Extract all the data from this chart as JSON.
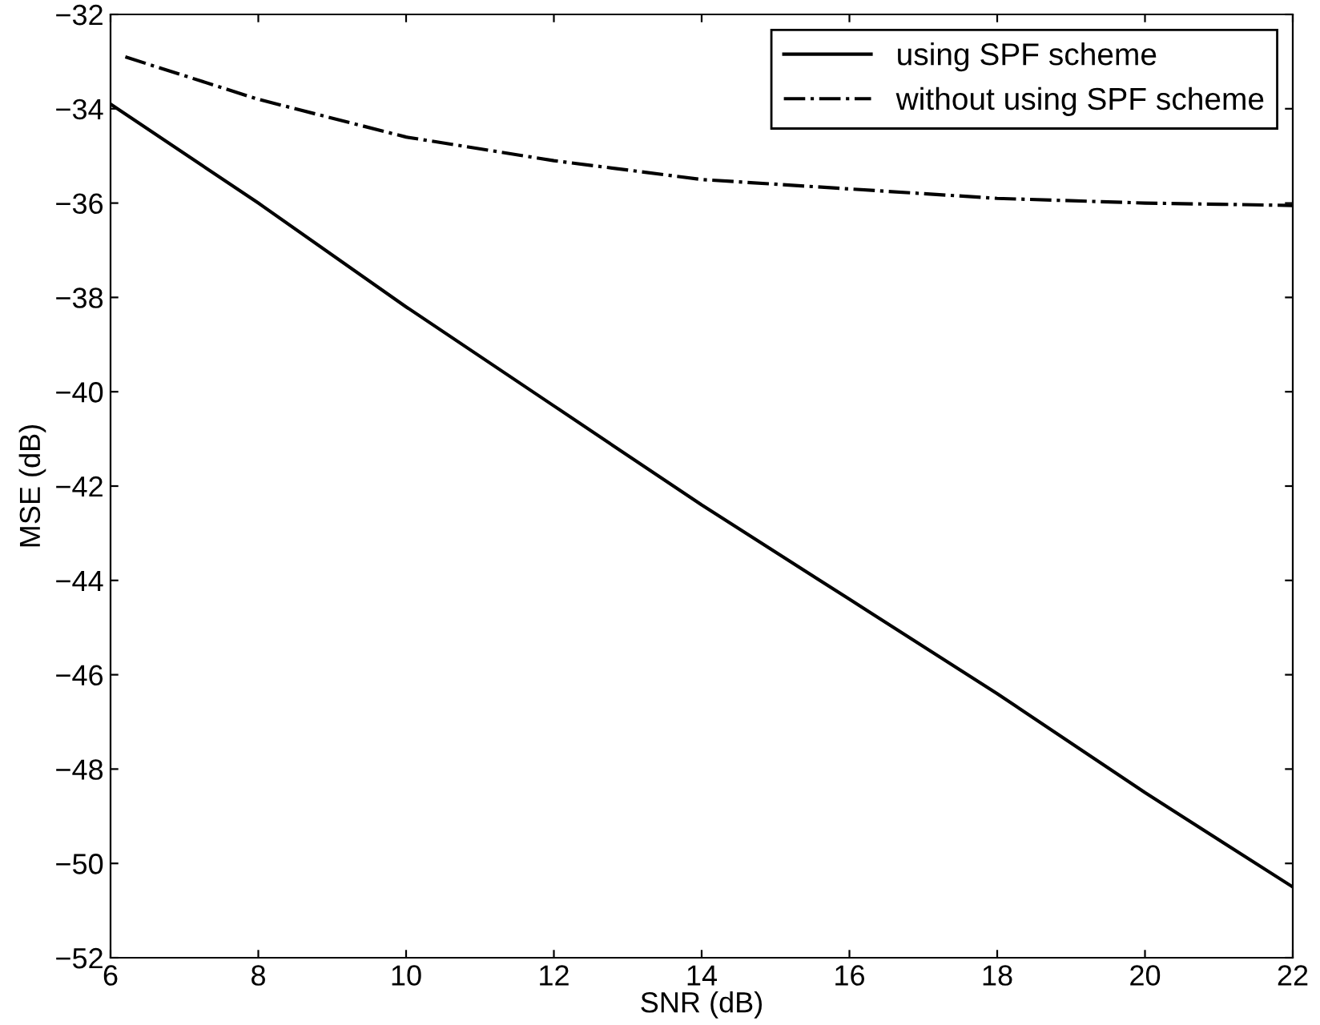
{
  "chart_data": {
    "type": "line",
    "xlabel": "SNR (dB)",
    "ylabel": "MSE (dB)",
    "xlim": [
      6,
      22
    ],
    "xticks": [
      6,
      8,
      10,
      12,
      14,
      16,
      18,
      20,
      22
    ],
    "ylim": [
      -52,
      -32
    ],
    "yticks": [
      -52,
      -50,
      -48,
      -46,
      -44,
      -42,
      -40,
      -38,
      -36,
      -34,
      -32
    ],
    "grid": false,
    "legend": "top right",
    "marker": "none",
    "series": [
      {
        "name": "using SPF scheme",
        "color": "#000000",
        "line_style": "solid",
        "x": [
          6,
          8,
          10,
          12,
          14,
          16,
          18,
          20,
          22
        ],
        "values": [
          -33.9,
          -36.0,
          -38.2,
          -40.3,
          -42.4,
          -44.4,
          -46.4,
          -48.5,
          -50.5
        ]
      },
      {
        "name": "without using SPF scheme",
        "color": "#000000",
        "line_style": "dashdot",
        "x": [
          6.2,
          8,
          10,
          12,
          14,
          16,
          18,
          20,
          22
        ],
        "values": [
          -32.9,
          -33.8,
          -34.6,
          -35.1,
          -35.5,
          -35.7,
          -35.9,
          -36.0,
          -36.05
        ]
      }
    ]
  }
}
